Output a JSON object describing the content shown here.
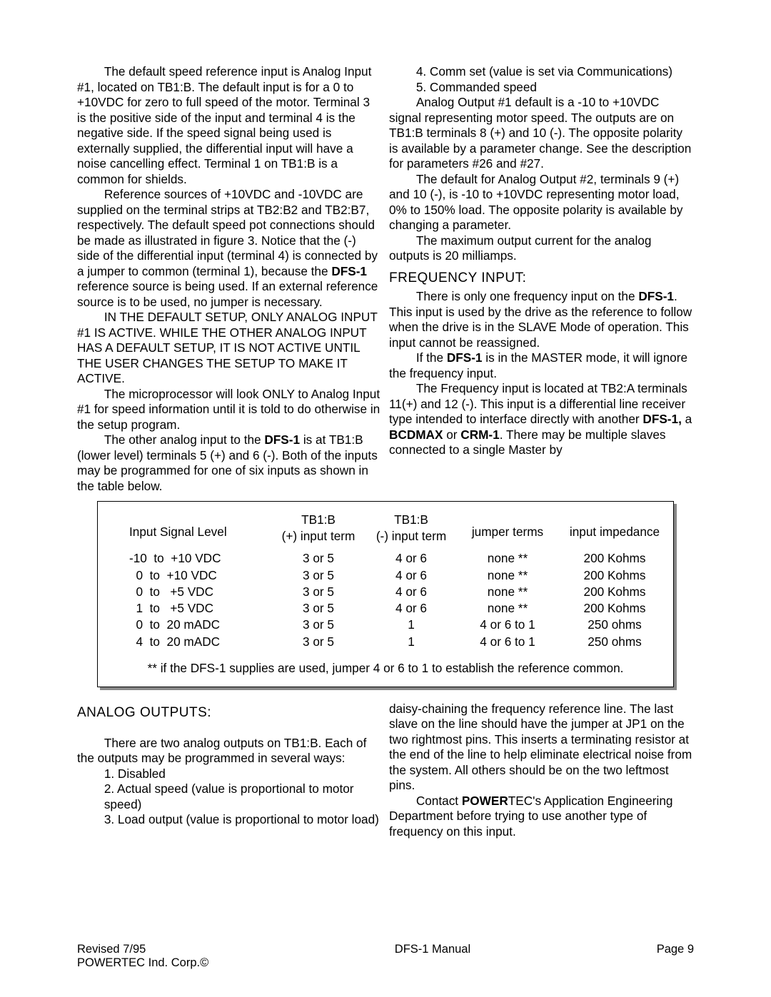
{
  "body1": {
    "p1": "The default speed reference input is Analog Input #1, located  on TB1:B. The default input is for a 0 to +10VDC for zero to full speed of the motor. Terminal 3 is the positive side of the input and terminal 4 is the negative side. If the speed signal being used is externally supplied, the differential input will have a noise cancelling effect. Terminal 1 on TB1:B is a common for shields.",
    "p2a": "Reference sources of +10VDC and -10VDC are supplied on the terminal strips at TB2:B2  and TB2:B7, respectively. The default speed pot connections should be made as illustrated in figure 3. Notice that the (-) side of the differential input (terminal 4) is connected by a jumper to common (terminal 1), because the ",
    "p2b": "DFS-1",
    "p2c": " reference source is being used. If an external reference source is to be used, no jumper is necessary.",
    "p3": "IN THE DEFAULT SETUP, ONLY ANALOG INPUT #1 IS ACTIVE. WHILE THE OTHER ANALOG INPUT HAS A DEFAULT SETUP, IT IS NOT ACTIVE UNTIL THE USER CHANGES THE SETUP TO MAKE IT ACTIVE.",
    "p4a": "The microprocessor will look ",
    "p4b": "ONLY",
    "p4c": " to Analog Input #1 for speed information until it is told to do otherwise in the setup program.",
    "p5a": "The other analog input to the ",
    "p5b": "DFS-1",
    "p5c": " is at TB1:B (lower level) terminals 5 (+) and 6 (-). Both of the inputs may be programmed for one of six inputs as shown in the table below.",
    "l4": "4.   Comm set (value is set via Communications)",
    "l5": "5.   Commanded speed",
    "p6": "Analog Output #1 default is a -10 to +10VDC signal representing motor speed. The outputs are on TB1:B terminals 8 (+) and 10 (-). The opposite polarity is available by a parameter change. See the description for parameters #26 and #27.",
    "p7": "The default for Analog Output #2, terminals 9 (+) and 10 (-), is -10 to +10VDC representing motor load, 0% to 150% load. The opposite polarity is available by changing a parameter.",
    "p8": "The maximum output current for the analog outputs is 20 milliamps.",
    "freq_title": "FREQUENCY INPUT:",
    "p9a": "There is only one frequency input on the ",
    "p9b": "DFS-1",
    "p9c": ". This input is used by the drive as the reference to follow when the drive is in the SLAVE Mode of operation. This input cannot be reassigned.",
    "p10a": "If the ",
    "p10b": "DFS-1",
    "p10c": " is in the MASTER mode, it will ignore the frequency input.",
    "p11a": "The Frequency input is located at TB2:A terminals 11(+) and 12 (-). This input is a differential line receiver type intended to interface directly with another ",
    "p11b": "DFS-1,",
    "p11c": " a ",
    "p11d": "BCDMAX",
    "p11e": " or ",
    "p11f": "CRM-1",
    "p11g": ".  There may be multiple slaves connected to a single Master by"
  },
  "table": {
    "h1": "Input Signal Level",
    "h2a": "TB1:B",
    "h2b": "(+) input term",
    "h3a": "TB1:B",
    "h3b": "(-) input term",
    "h4": "jumper terms",
    "h5": "input impedance",
    "rows": [
      {
        "c1": "-10  to  +10 VDC",
        "c2": "3  or  5",
        "c3": "4  or  6",
        "c4": "none  **",
        "c5": "200 Kohms"
      },
      {
        "c1": "  0  to  +10 VDC",
        "c2": "3  or  5",
        "c3": "4  or  6",
        "c4": "none  **",
        "c5": "200 Kohms"
      },
      {
        "c1": "  0  to   +5 VDC",
        "c2": "3  or  5",
        "c3": "4  or  6",
        "c4": "none  **",
        "c5": "200 Kohms"
      },
      {
        "c1": "  1  to   +5 VDC",
        "c2": "3  or  5",
        "c3": "4  or  6",
        "c4": "none  **",
        "c5": "200 Kohms"
      },
      {
        "c1": "  0  to  20 mADC",
        "c2": "3  or  5",
        "c3": "1",
        "c4": "4 or 6 to 1",
        "c5": "250  ohms"
      },
      {
        "c1": "  4  to  20 mADC",
        "c2": "3  or  5",
        "c3": "1",
        "c4": "4 or 6 to 1",
        "c5": "250  ohms"
      }
    ],
    "note": "** if the DFS-1 supplies are used, jumper 4 or 6 to 1 to establish the reference common."
  },
  "body2": {
    "analog_title": "ANALOG OUTPUTS:",
    "p1": "There are two analog outputs on TB1:B. Each of the outputs may be programmed in several ways:",
    "l1": "1.   Disabled",
    "l2": "2.   Actual speed (value is proportional to motor speed)",
    "l3a": "3.   Load output (value ",
    "l3b": "is ",
    "l3c": "proportional to motor load)",
    "p2": "daisy-chaining the frequency reference line.  The last slave on the line should have the jumper at JP1 on the two rightmost pins.  This inserts a terminating resistor at the end of the line to help eliminate electrical noise from the system.  All others should be on the two leftmost  pins.",
    "p3a": "Contact ",
    "p3b": "POWER",
    "p3c": "TEC's Application Engineering Department before trying to ",
    "p3d": "use ",
    "p3e": "another type of frequency on ",
    "p3f": "this ",
    "p3g": "input."
  },
  "footer": {
    "left1": "Revised 7/95",
    "left2": "POWERTEC Ind. Corp.©",
    "center": "DFS-1 Manual",
    "right": "Page 9"
  }
}
